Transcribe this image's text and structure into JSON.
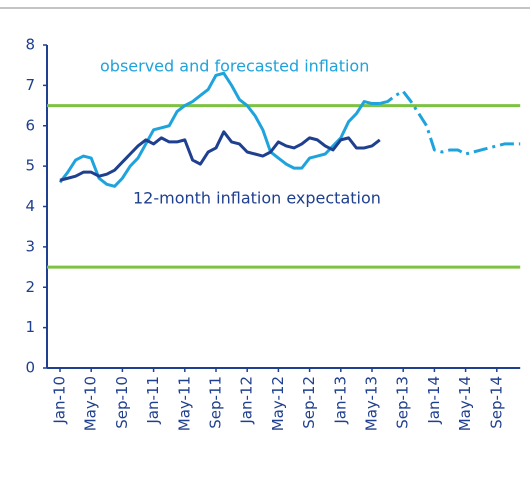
{
  "chart_data": {
    "type": "line",
    "categories": [
      "Jan-10",
      null,
      null,
      null,
      "May-10",
      null,
      null,
      null,
      "Sep-10",
      null,
      null,
      null,
      "Jan-11",
      null,
      null,
      null,
      "May-11",
      null,
      null,
      null,
      "Sep-11",
      null,
      null,
      null,
      "Jan-12",
      null,
      null,
      null,
      "May-12",
      null,
      null,
      null,
      "Sep-12",
      null,
      null,
      null,
      "Jan-13",
      null,
      null,
      null,
      "May-13",
      null,
      null,
      null,
      "Sep-13",
      null,
      null,
      null,
      "Jan-14",
      null,
      null,
      null,
      "May-14",
      null,
      null,
      null,
      "Sep-14",
      null,
      null,
      null
    ],
    "series": [
      {
        "name": "observed and forecasted inflation",
        "color": "#1fa3dc",
        "dash": "solid",
        "values": [
          4.6,
          4.85,
          5.15,
          5.25,
          5.2,
          4.7,
          4.55,
          4.5,
          4.7,
          5.0,
          5.2,
          5.55,
          5.9,
          5.95,
          6.0,
          6.35,
          6.5,
          6.6,
          6.75,
          6.9,
          7.25,
          7.3,
          7.0,
          6.65,
          6.5,
          6.25,
          5.9,
          5.35,
          5.2,
          5.05,
          4.95,
          4.95,
          5.2,
          5.25,
          5.3,
          5.5,
          5.7,
          6.1,
          6.3,
          6.6,
          6.55,
          6.55,
          null,
          null,
          null,
          null,
          null,
          null,
          null,
          null,
          null,
          null,
          null,
          null,
          null,
          null,
          null,
          null,
          null,
          null
        ]
      },
      {
        "color": "#1fa3dc",
        "dash": "dash-dot",
        "values": [
          null,
          null,
          null,
          null,
          null,
          null,
          null,
          null,
          null,
          null,
          null,
          null,
          null,
          null,
          null,
          null,
          null,
          null,
          null,
          null,
          null,
          null,
          null,
          null,
          null,
          null,
          null,
          null,
          null,
          null,
          null,
          null,
          null,
          null,
          null,
          null,
          null,
          null,
          null,
          null,
          null,
          6.55,
          6.6,
          6.75,
          6.85,
          6.6,
          6.3,
          6.0,
          5.4,
          5.35,
          5.4,
          5.4,
          5.3,
          5.35,
          5.4,
          5.45,
          5.5,
          5.55,
          5.55,
          5.55
        ]
      },
      {
        "name": "12-month inflation expectation",
        "color": "#1f3f8f",
        "dash": "solid",
        "values": [
          4.65,
          4.7,
          4.75,
          4.85,
          4.85,
          4.75,
          4.8,
          4.9,
          5.1,
          5.3,
          5.5,
          5.65,
          5.55,
          5.7,
          5.6,
          5.6,
          5.65,
          5.15,
          5.05,
          5.35,
          5.45,
          5.85,
          5.6,
          5.55,
          5.35,
          5.3,
          5.25,
          5.35,
          5.6,
          5.5,
          5.45,
          5.55,
          5.7,
          5.65,
          5.5,
          5.4,
          5.65,
          5.7,
          5.45,
          5.45,
          5.5,
          5.65,
          null,
          null,
          null,
          null,
          null,
          null,
          null,
          null,
          null,
          null,
          null,
          null,
          null,
          null,
          null,
          null,
          null,
          null
        ]
      }
    ],
    "reference_lines": [
      6.5,
      2.5
    ],
    "reference_color": "#7dc242",
    "ylim": [
      0,
      8
    ],
    "yticks": [
      0,
      1,
      2,
      3,
      4,
      5,
      6,
      7,
      8
    ]
  }
}
